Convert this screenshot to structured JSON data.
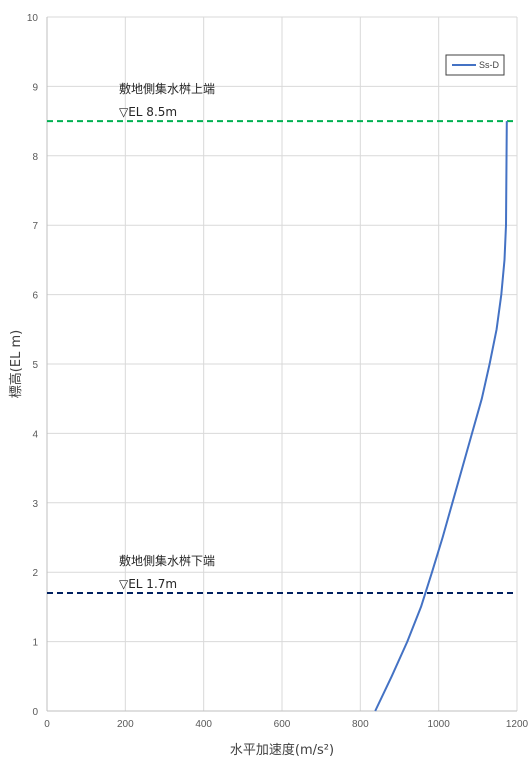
{
  "chart_data": {
    "type": "line",
    "xlabel": "水平加速度(m/s²)",
    "ylabel": "標高(EL m)",
    "xlim": [
      0,
      1200
    ],
    "ylim": [
      0,
      10
    ],
    "x_ticks": [
      0,
      200,
      400,
      600,
      800,
      1000,
      1200
    ],
    "y_ticks": [
      0,
      1,
      2,
      3,
      4,
      5,
      6,
      7,
      8,
      9,
      10
    ],
    "grid": true,
    "legend": {
      "position": "top-right",
      "entries": [
        "Ss-D"
      ]
    },
    "series": [
      {
        "name": "Ss-D",
        "color": "#4472C4",
        "x": [
          838,
          880,
          920,
          955,
          983,
          1010,
          1035,
          1060,
          1085,
          1110,
          1130,
          1148,
          1160,
          1168,
          1172,
          1174
        ],
        "y": [
          0,
          0.5,
          1.0,
          1.5,
          2.0,
          2.5,
          3.0,
          3.5,
          4.0,
          4.5,
          5.0,
          5.5,
          6.0,
          6.5,
          7.0,
          8.5
        ]
      }
    ],
    "reference_lines": [
      {
        "y": 8.5,
        "color": "#00B050",
        "style": "dashed",
        "label_top": "敷地側集水桝上端",
        "label_bottom": "▽EL 8.5m"
      },
      {
        "y": 1.7,
        "color": "#002060",
        "style": "dashed",
        "label_top": "敷地側集水桝下端",
        "label_bottom": "▽EL 1.7m"
      }
    ]
  },
  "colors": {
    "grid": "#d9d9d9",
    "axis": "#bfbfbf",
    "series": "#4472C4"
  }
}
